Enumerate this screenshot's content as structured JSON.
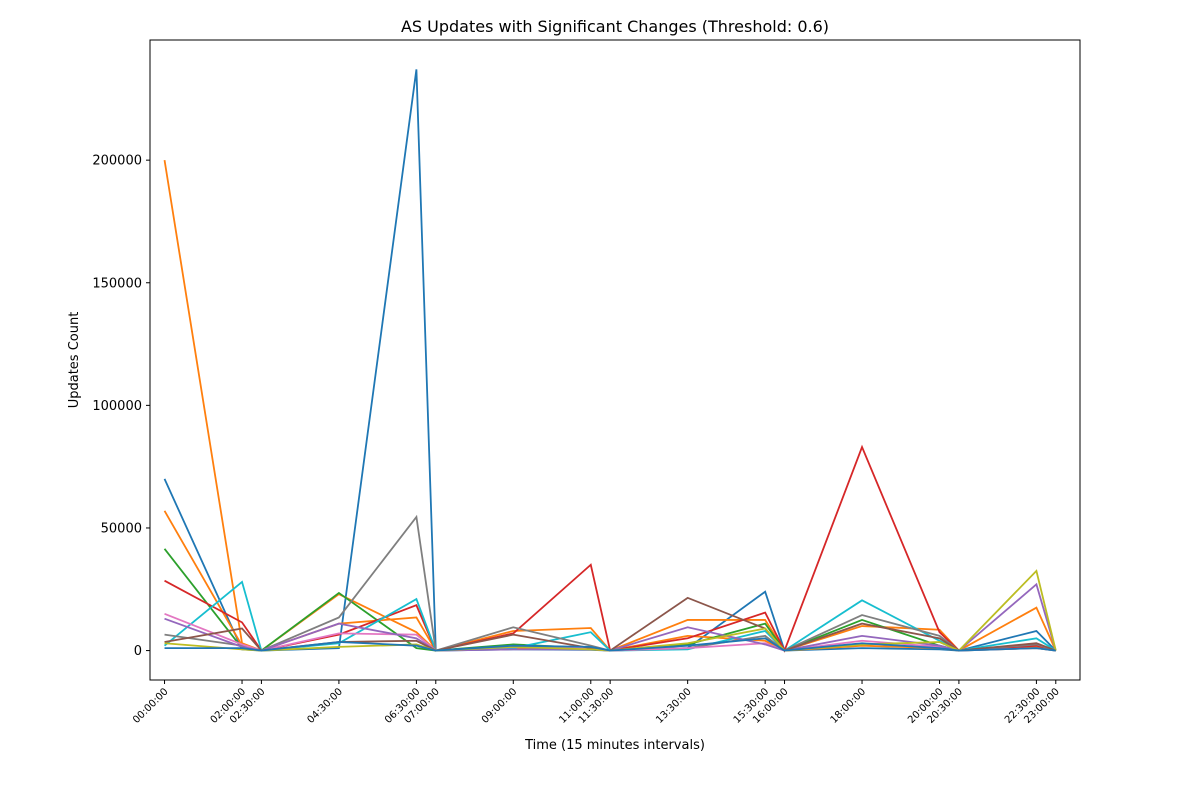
{
  "chart_data": {
    "type": "line",
    "title": "AS Updates with Significant Changes (Threshold: 0.6)",
    "xlabel": "Time (15 minutes intervals)",
    "ylabel": "Updates Count",
    "xlim": [
      -1.5,
      94.5
    ],
    "ylim": [
      -12000,
      249000
    ],
    "yticks": [
      0,
      50000,
      100000,
      150000,
      200000
    ],
    "xticks": [
      {
        "i": 0,
        "label": "00:00:00"
      },
      {
        "i": 8,
        "label": "02:00:00"
      },
      {
        "i": 10,
        "label": "02:30:00"
      },
      {
        "i": 18,
        "label": "04:30:00"
      },
      {
        "i": 26,
        "label": "06:30:00"
      },
      {
        "i": 28,
        "label": "07:00:00"
      },
      {
        "i": 36,
        "label": "09:00:00"
      },
      {
        "i": 44,
        "label": "11:00:00"
      },
      {
        "i": 46,
        "label": "11:30:00"
      },
      {
        "i": 54,
        "label": "13:30:00"
      },
      {
        "i": 62,
        "label": "15:30:00"
      },
      {
        "i": 64,
        "label": "16:00:00"
      },
      {
        "i": 72,
        "label": "18:00:00"
      },
      {
        "i": 80,
        "label": "20:00:00"
      },
      {
        "i": 82,
        "label": "20:30:00"
      },
      {
        "i": 90,
        "label": "22:30:00"
      },
      {
        "i": 92,
        "label": "23:00:00"
      }
    ],
    "grid": false,
    "legend": "none",
    "x_index": [
      0,
      8,
      10,
      18,
      26,
      28,
      36,
      44,
      46,
      54,
      62,
      64,
      72,
      80,
      82,
      90,
      92
    ],
    "series": [
      {
        "color": "#1f77b4",
        "values": [
          70000,
          500,
          0,
          1000,
          237000,
          0,
          500,
          300,
          0,
          1000,
          24000,
          0,
          1000,
          500,
          0,
          8000,
          0
        ]
      },
      {
        "color": "#ff7f0e",
        "values": [
          200000,
          3000,
          0,
          11000,
          13500,
          0,
          8000,
          9200,
          0,
          12500,
          12500,
          0,
          10000,
          8500,
          0,
          17500,
          0
        ]
      },
      {
        "color": "#ff7f0e",
        "values": [
          57000,
          2000,
          0,
          23000,
          7500,
          0,
          1000,
          500,
          0,
          6000,
          4000,
          0,
          2000,
          1000,
          0,
          1500,
          0
        ]
      },
      {
        "color": "#2ca02c",
        "values": [
          41500,
          1000,
          0,
          23500,
          1000,
          0,
          2500,
          1000,
          0,
          2500,
          11000,
          0,
          12500,
          2000,
          0,
          1000,
          0
        ]
      },
      {
        "color": "#d62728",
        "values": [
          28500,
          11500,
          0,
          6500,
          18500,
          0,
          7000,
          35000,
          0,
          5000,
          15500,
          0,
          83000,
          7500,
          0,
          2000,
          0
        ]
      },
      {
        "color": "#17becf",
        "values": [
          2000,
          28000,
          0,
          3000,
          21000,
          0,
          1000,
          7500,
          0,
          500,
          8000,
          0,
          20500,
          4000,
          0,
          5000,
          0
        ]
      },
      {
        "color": "#7f7f7f",
        "values": [
          6500,
          2000,
          0,
          13500,
          54500,
          0,
          9500,
          2000,
          0,
          1000,
          6000,
          0,
          14500,
          6000,
          0,
          2500,
          0
        ]
      },
      {
        "color": "#e377c2",
        "values": [
          15000,
          2500,
          0,
          7000,
          6500,
          0,
          1500,
          1000,
          0,
          1000,
          3000,
          0,
          4000,
          1500,
          0,
          1000,
          0
        ]
      },
      {
        "color": "#9467bd",
        "values": [
          13000,
          1500,
          0,
          11000,
          5000,
          0,
          500,
          500,
          0,
          9500,
          2500,
          0,
          6000,
          2000,
          0,
          27000,
          0
        ]
      },
      {
        "color": "#8c564b",
        "values": [
          3500,
          9000,
          0,
          3500,
          4000,
          0,
          6500,
          1000,
          0,
          21500,
          9000,
          0,
          11000,
          5000,
          0,
          3000,
          0
        ]
      },
      {
        "color": "#bcbd22",
        "values": [
          3000,
          500,
          0,
          1500,
          2500,
          0,
          1500,
          500,
          0,
          3000,
          9000,
          0,
          2500,
          3500,
          0,
          32500,
          0
        ]
      },
      {
        "color": "#1f77b4",
        "values": [
          1000,
          1000,
          0,
          3500,
          2000,
          0,
          2000,
          1500,
          0,
          2000,
          5000,
          0,
          3000,
          1000,
          0,
          1000,
          0
        ]
      }
    ]
  }
}
